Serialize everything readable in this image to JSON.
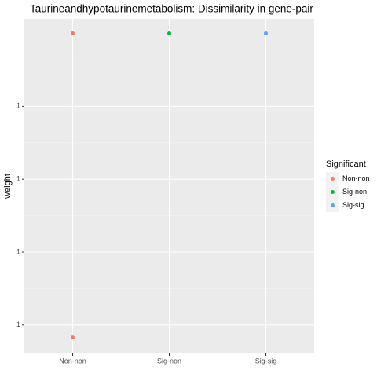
{
  "chart_data": {
    "type": "scatter",
    "title": "Taurineandhypotaurinemetabolism: Dissimilarity in gene-pair",
    "y_label": "weight",
    "legend_title": "Significant",
    "categories": [
      "Non-non",
      "Sig-non",
      "Sig-sig"
    ],
    "series": [
      {
        "name": "Non-non",
        "color": "#F8766D",
        "values": [
          1.0,
          0.9999999583
        ]
      },
      {
        "name": "Sig-non",
        "color": "#00BA38",
        "values": [
          1.0
        ]
      },
      {
        "name": "Sig-sig",
        "color": "#619CFF",
        "values": [
          1.0
        ]
      }
    ],
    "ylim": [
      0.9999999561,
      1.000000002
    ],
    "yticks": [
      {
        "value": 0.99999996,
        "label": "1"
      },
      {
        "value": 0.99999997,
        "label": "1"
      },
      {
        "value": 0.99999998,
        "label": "1"
      },
      {
        "value": 0.99999999,
        "label": "1"
      }
    ],
    "grid": true,
    "legend_position": "right"
  }
}
